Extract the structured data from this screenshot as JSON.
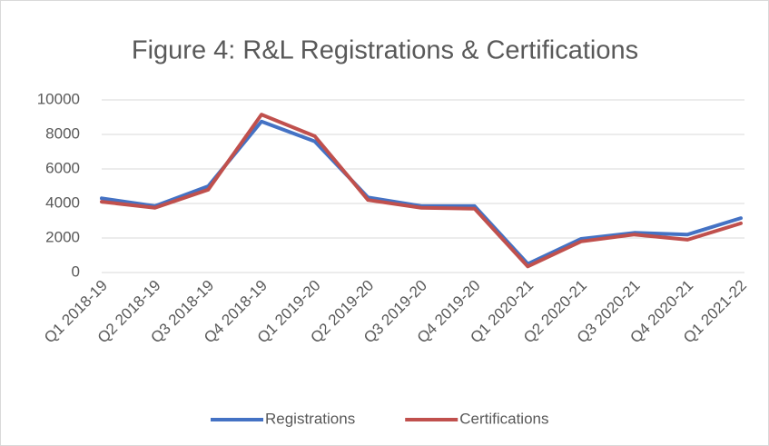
{
  "chart_data": {
    "type": "line",
    "title": "Figure 4: R&L Registrations & Certifications",
    "categories": [
      "Q1 2018-19",
      "Q2 2018-19",
      "Q3 2018-19",
      "Q4 2018-19",
      "Q1 2019-20",
      "Q2 2019-20",
      "Q3 2019-20",
      "Q4 2019-20",
      "Q1 2020-21",
      "Q2 2020-21",
      "Q3 2020-21",
      "Q4 2020-21",
      "Q1 2021-22"
    ],
    "series": [
      {
        "name": "Registrations",
        "color": "#4472c4",
        "values": [
          4300,
          3850,
          5000,
          8750,
          7600,
          4350,
          3850,
          3850,
          500,
          1950,
          2300,
          2200,
          3150
        ]
      },
      {
        "name": "Certifications",
        "color": "#c0504d",
        "values": [
          4100,
          3750,
          4800,
          9150,
          7900,
          4200,
          3750,
          3700,
          350,
          1800,
          2200,
          1900,
          2850
        ]
      }
    ],
    "ylim": [
      0,
      10000
    ],
    "yticks": [
      0,
      2000,
      4000,
      6000,
      8000,
      10000
    ],
    "grid": true,
    "legend": "bottom"
  }
}
